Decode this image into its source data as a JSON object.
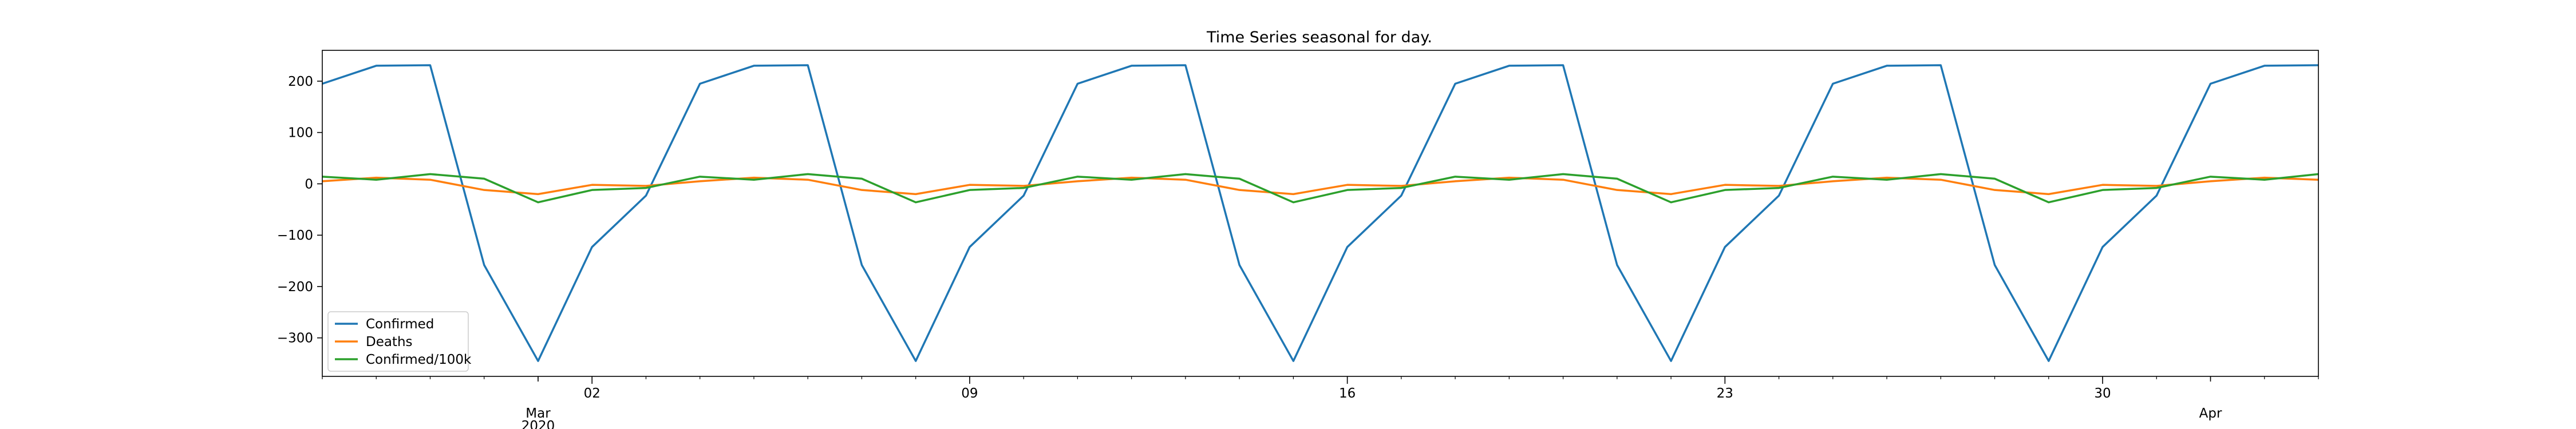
{
  "chart_data": {
    "type": "line",
    "title": "Time Series seasonal for day.",
    "xlabel": "",
    "ylabel": "",
    "x": [
      "2020-02-26",
      "2020-02-27",
      "2020-02-28",
      "2020-02-29",
      "2020-03-01",
      "2020-03-02",
      "2020-03-03",
      "2020-03-04",
      "2020-03-05",
      "2020-03-06",
      "2020-03-07",
      "2020-03-08",
      "2020-03-09",
      "2020-03-10",
      "2020-03-11",
      "2020-03-12",
      "2020-03-13",
      "2020-03-14",
      "2020-03-15",
      "2020-03-16",
      "2020-03-17",
      "2020-03-18",
      "2020-03-19",
      "2020-03-20",
      "2020-03-21",
      "2020-03-22",
      "2020-03-23",
      "2020-03-24",
      "2020-03-25",
      "2020-03-26",
      "2020-03-27",
      "2020-03-28",
      "2020-03-29",
      "2020-03-30",
      "2020-03-31",
      "2020-04-01",
      "2020-04-02",
      "2020-04-03"
    ],
    "xlim": [
      "2020-02-26",
      "2020-04-03"
    ],
    "ylim": [
      -375,
      260
    ],
    "yticks": [
      200,
      100,
      0,
      -100,
      -200,
      -300
    ],
    "ytick_labels": [
      "200",
      "100",
      "0",
      "−100",
      "−200",
      "−300"
    ],
    "xticks": [
      {
        "date": "2020-03-01",
        "label": "Mar",
        "sublabel": "2020"
      },
      {
        "date": "2020-03-02",
        "label": "02"
      },
      {
        "date": "2020-03-09",
        "label": "09"
      },
      {
        "date": "2020-03-16",
        "label": "16"
      },
      {
        "date": "2020-03-23",
        "label": "23"
      },
      {
        "date": "2020-03-30",
        "label": "30"
      },
      {
        "date": "2020-04-01",
        "label": "Apr"
      }
    ],
    "series": [
      {
        "name": "Confirmed",
        "color": "#1f77b4",
        "values": [
          195,
          230,
          231,
          -158,
          -345,
          -123,
          -23,
          195,
          230,
          231,
          -158,
          -345,
          -123,
          -23,
          195,
          230,
          231,
          -158,
          -345,
          -123,
          -23,
          195,
          230,
          231,
          -158,
          -345,
          -123,
          -23,
          195,
          230,
          231,
          -158,
          -345,
          -123,
          -23,
          195,
          230,
          231
        ]
      },
      {
        "name": "Deaths",
        "color": "#ff7f0e",
        "values": [
          5,
          12,
          8,
          -12,
          -20,
          -2,
          -4,
          5,
          12,
          8,
          -12,
          -20,
          -2,
          -4,
          5,
          12,
          8,
          -12,
          -20,
          -2,
          -4,
          5,
          12,
          8,
          -12,
          -20,
          -2,
          -4,
          5,
          12,
          8,
          -12,
          -20,
          -2,
          -4,
          5,
          12,
          8
        ]
      },
      {
        "name": "Confirmed/100k",
        "color": "#2ca02c",
        "values": [
          14,
          8,
          19,
          10,
          -36,
          -12,
          -8,
          14,
          8,
          19,
          10,
          -36,
          -12,
          -8,
          14,
          8,
          19,
          10,
          -36,
          -12,
          -8,
          14,
          8,
          19,
          10,
          -36,
          -12,
          -8,
          14,
          8,
          19,
          10,
          -36,
          -12,
          -8,
          14,
          8,
          19
        ]
      }
    ],
    "legend": {
      "position": "lower-left"
    },
    "grid": false
  }
}
